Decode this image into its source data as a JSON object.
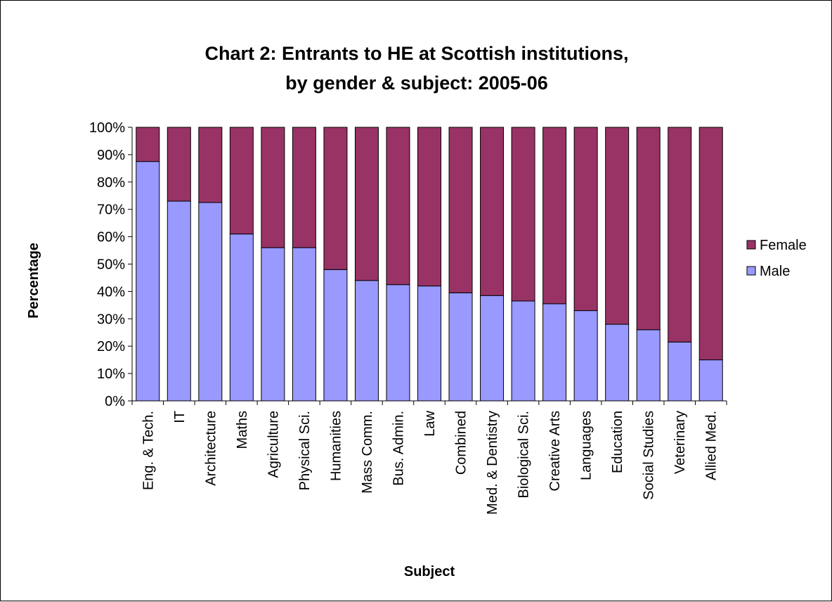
{
  "chart_data": {
    "type": "bar",
    "stacked": true,
    "title_line1": "Chart 2: Entrants to HE at Scottish institutions,",
    "title_line2": "by gender & subject: 2005-06",
    "xlabel": "Subject",
    "ylabel": "Percentage",
    "ylim": [
      0,
      100
    ],
    "y_ticks": [
      "0%",
      "10%",
      "20%",
      "30%",
      "40%",
      "50%",
      "60%",
      "70%",
      "80%",
      "90%",
      "100%"
    ],
    "grid": false,
    "legend_position": "right",
    "categories": [
      "Eng. & Tech.",
      "IT",
      "Architecture",
      "Maths",
      "Agriculture",
      "Physical Sci.",
      "Humanities",
      "Mass Comm.",
      "Bus. Admin.",
      "Law",
      "Combined",
      "Med. & Dentistry",
      "Biological Sci.",
      "Creative Arts",
      "Languages",
      "Education",
      "Social Studies",
      "Veterinary",
      "Allied Med."
    ],
    "series": [
      {
        "name": "Male",
        "color": "#9999ff",
        "values": [
          87.5,
          73,
          72.5,
          61,
          56,
          56,
          48,
          44,
          42.5,
          42,
          39.5,
          38.5,
          36.5,
          35.5,
          33,
          28,
          26,
          21.5,
          15
        ]
      },
      {
        "name": "Female",
        "color": "#993366",
        "values": [
          12.5,
          27,
          27.5,
          39,
          44,
          44,
          52,
          56,
          57.5,
          58,
          60.5,
          61.5,
          63.5,
          64.5,
          67,
          72,
          74,
          78.5,
          85
        ]
      }
    ],
    "legend_order": [
      "Female",
      "Male"
    ]
  }
}
